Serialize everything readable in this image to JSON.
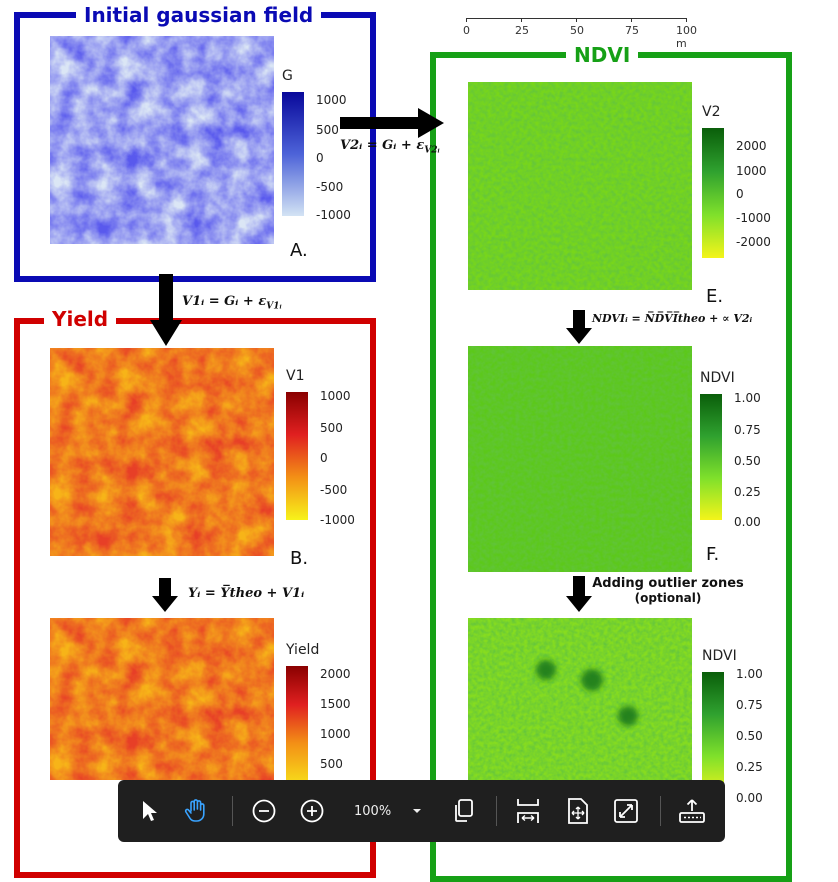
{
  "panels": {
    "gaussian": {
      "title": "Initial gaussian field",
      "legend_title": "G",
      "ticks": [
        "1000",
        "500",
        "0",
        "-500",
        "-1000"
      ],
      "letter": "A."
    },
    "yield": {
      "title": "Yield",
      "b_legend_title": "V1",
      "b_ticks": [
        "1000",
        "500",
        "0",
        "-500",
        "-1000"
      ],
      "b_letter": "B.",
      "c_legend_title": "Yield",
      "c_ticks": [
        "2000",
        "1500",
        "1000",
        "500"
      ]
    },
    "ndvi": {
      "title": "NDVI",
      "e_legend_title": "V2",
      "e_ticks": [
        "2000",
        "1000",
        "0",
        "-1000",
        "-2000"
      ],
      "e_letter": "E.",
      "f_legend_title": "NDVI",
      "f_ticks": [
        "1.00",
        "0.75",
        "0.50",
        "0.25",
        "0.00"
      ],
      "f_letter": "F.",
      "g_legend_title": "NDVI",
      "g_ticks": [
        "1.00",
        "0.75",
        "0.50",
        "0.25",
        "0.00"
      ]
    }
  },
  "equations": {
    "v2": "V2ᵢ = Gᵢ + ε",
    "v2_sub": "V2ᵢ",
    "v1": "V1ᵢ = Gᵢ + ε",
    "v1_sub": "V1ᵢ",
    "yield": "Yᵢ = Y̅theo + V1ᵢ",
    "ndvi": "NDVIᵢ = N̅D̅V̅I̅theo + ∝ V2ᵢ"
  },
  "outlier_note_line1": "Adding outlier zones",
  "outlier_note_line2": "(optional)",
  "scalebar": {
    "labels": [
      "0",
      "25",
      "50",
      "75",
      "100 m"
    ]
  },
  "toolbar": {
    "zoom_value": "100%"
  },
  "colors": {
    "blue": "#0a0ab4",
    "red": "#d00000",
    "green": "#16a016"
  }
}
